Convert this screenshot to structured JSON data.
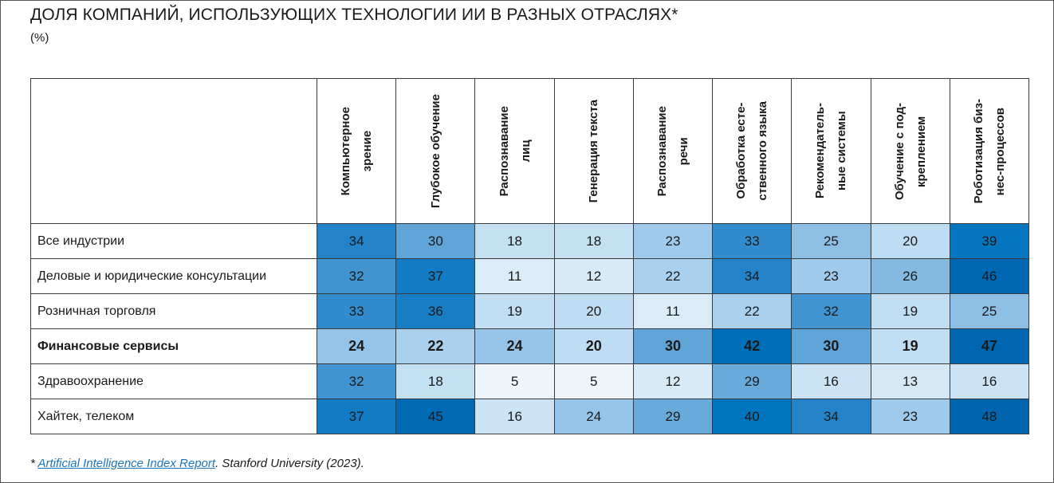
{
  "chart_data": {
    "type": "heatmap",
    "title": "ДОЛЯ КОМПАНИЙ, ИСПОЛЬЗУЮЩИХ ТЕХНОЛОГИИ ИИ В РАЗНЫХ ОТРАСЛЯХ*",
    "subtitle": "(%)",
    "columns": [
      "Компьютерное\nзрение",
      "Глубокое обучение",
      "Распознавание\nлиц",
      "Генерация текста",
      "Распознавание\nречи",
      "Обработка есте-\nственного языка",
      "Рекомендатель-\nные системы",
      "Обучение с под-\nкреплением",
      "Роботизация биз-\nнес-процессов"
    ],
    "rows": [
      {
        "label": "Все индустрии",
        "values": [
          34,
          30,
          18,
          18,
          23,
          33,
          25,
          20,
          39
        ],
        "bold": false
      },
      {
        "label": "Деловые и юридические консультации",
        "values": [
          32,
          37,
          11,
          12,
          22,
          34,
          23,
          26,
          46
        ],
        "bold": false
      },
      {
        "label": "Розничная торговля",
        "values": [
          33,
          36,
          19,
          20,
          11,
          22,
          32,
          19,
          25
        ],
        "bold": false
      },
      {
        "label": "Финансовые сервисы",
        "values": [
          24,
          22,
          24,
          20,
          30,
          42,
          30,
          19,
          47
        ],
        "bold": true
      },
      {
        "label": "Здравоохранение",
        "values": [
          32,
          18,
          5,
          5,
          12,
          29,
          16,
          13,
          16
        ],
        "bold": false
      },
      {
        "label": "Хайтек, телеком",
        "values": [
          37,
          45,
          16,
          24,
          29,
          40,
          34,
          23,
          48
        ],
        "bold": false
      }
    ]
  },
  "footnote": {
    "prefix": "* ",
    "link_text": "Artificial Intelligence Index Report",
    "suffix": ". Stanford University (2023)."
  }
}
